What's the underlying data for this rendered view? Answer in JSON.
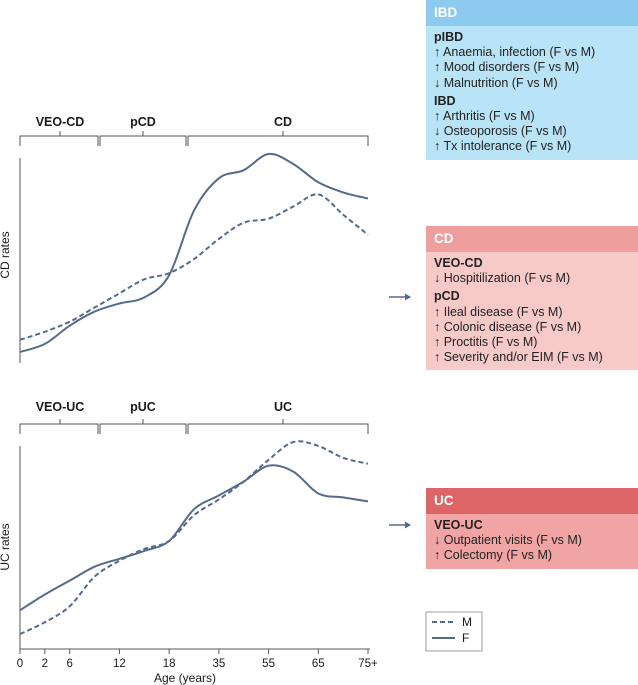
{
  "colors": {
    "line": "#566a8c",
    "axis": "#555555",
    "ibd_header": "#8ccbef",
    "ibd_body": "#b9e3f7",
    "cd_header": "#ef9e9e",
    "cd_body": "#f7c9c8",
    "uc_header": "#de6567",
    "uc_body": "#f0a4a4"
  },
  "chart_data": [
    {
      "type": "line",
      "ylabel": "CD rates",
      "phases": [
        "VEO-CD",
        "pCD",
        "CD"
      ],
      "x_index": [
        0,
        1,
        2,
        3,
        4,
        5,
        6,
        7,
        8,
        9,
        10,
        11,
        12,
        13,
        14
      ],
      "series": [
        {
          "name": "M",
          "style": "dashed",
          "values": [
            0.08,
            0.12,
            0.17,
            0.24,
            0.31,
            0.38,
            0.41,
            0.48,
            0.58,
            0.66,
            0.68,
            0.74,
            0.8,
            0.7,
            0.6
          ]
        },
        {
          "name": "F",
          "style": "solid",
          "values": [
            0.02,
            0.06,
            0.15,
            0.22,
            0.26,
            0.29,
            0.4,
            0.72,
            0.88,
            0.92,
            1.0,
            0.95,
            0.86,
            0.81,
            0.78
          ]
        }
      ],
      "ylim": [
        0,
        1.02
      ]
    },
    {
      "type": "line",
      "ylabel": "UC rates",
      "xlabel": "Age (years)",
      "phases": [
        "VEO-UC",
        "pUC",
        "UC"
      ],
      "x_index": [
        0,
        1,
        2,
        3,
        4,
        5,
        6,
        7,
        8,
        9,
        10,
        11,
        12,
        13,
        14
      ],
      "series": [
        {
          "name": "M",
          "style": "dashed",
          "values": [
            0.03,
            0.09,
            0.17,
            0.32,
            0.4,
            0.46,
            0.5,
            0.63,
            0.71,
            0.8,
            0.91,
            1.0,
            0.98,
            0.92,
            0.89
          ]
        },
        {
          "name": "F",
          "style": "solid",
          "values": [
            0.15,
            0.23,
            0.3,
            0.37,
            0.41,
            0.45,
            0.5,
            0.66,
            0.73,
            0.8,
            0.88,
            0.85,
            0.74,
            0.72,
            0.7
          ]
        }
      ],
      "ylim": [
        0,
        1.02
      ]
    }
  ],
  "xaxis": {
    "ticks": [
      "0",
      "2",
      "6",
      "12",
      "18",
      "35",
      "55",
      "65",
      "75+"
    ],
    "tick_index": [
      0,
      1,
      2,
      4,
      6,
      8,
      10,
      12,
      14
    ]
  },
  "legend": {
    "m": "M",
    "f": "F"
  },
  "ibd": {
    "title": "IBD",
    "sections": [
      {
        "heading": "pIBD",
        "items": [
          "↑ Anaemia, infection (F vs M)",
          "↑ Mood disorders (F vs M)",
          "↓ Malnutrition (F vs M)"
        ]
      },
      {
        "heading": "IBD",
        "items": [
          "↑ Arthritis (F vs M)",
          "↓ Osteoporosis (F vs M)",
          "↑ Tx intolerance (F vs M)"
        ]
      }
    ]
  },
  "cd": {
    "title": "CD",
    "sections": [
      {
        "heading": "VEO-CD",
        "items": [
          "↓ Hospitilization (F vs M)"
        ]
      },
      {
        "heading": "pCD",
        "items": [
          "↑ Ileal disease (F vs M)",
          "↑ Colonic disease (F vs M)",
          "↑ Proctitis (F vs M)",
          "↑ Severity and/or EIM (F vs M)"
        ]
      }
    ]
  },
  "uc": {
    "title": "UC",
    "sections": [
      {
        "heading": "VEO-UC",
        "items": [
          "↓ Outpatient visits (F vs M)",
          "↑ Colectomy (F vs M)"
        ]
      }
    ]
  }
}
